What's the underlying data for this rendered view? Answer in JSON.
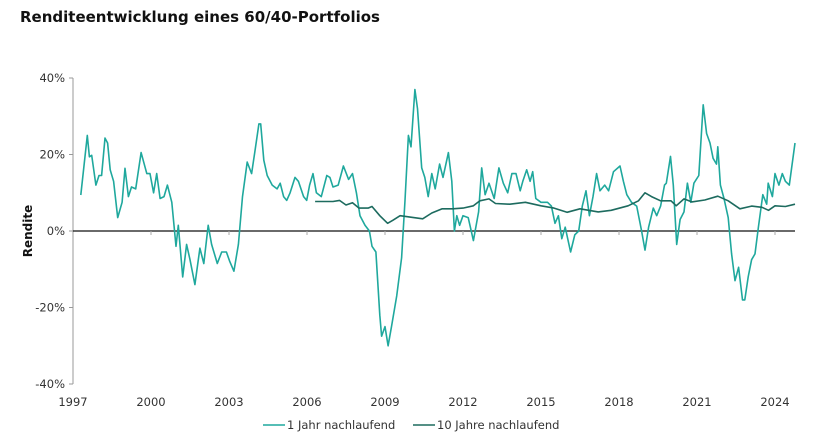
{
  "chart_data": {
    "type": "line",
    "title": "Renditeentwicklung eines 60/40-Portfolios",
    "xlabel": "",
    "ylabel": "Rendite",
    "xlim": [
      1997,
      2024.8
    ],
    "ylim": [
      -40,
      40
    ],
    "x_ticks": [
      "1997",
      "2000",
      "2003",
      "2006",
      "2009",
      "2012",
      "2015",
      "2018",
      "2021",
      "2024"
    ],
    "x_tick_values": [
      1997,
      2000,
      2003,
      2006,
      2009,
      2012,
      2015,
      2018,
      2021,
      2024
    ],
    "y_ticks": [
      "40%",
      "20%",
      "0%",
      "-20%",
      "-40%"
    ],
    "y_tick_values": [
      40,
      20,
      0,
      -20,
      -40
    ],
    "grid": false,
    "legend_position": "bottom",
    "series": [
      {
        "name": "1 Jahr nachlaufend",
        "color": "#1fa89d",
        "points": [
          [
            1997.3,
            9.4
          ],
          [
            1997.55,
            25
          ],
          [
            1997.63,
            19.4
          ],
          [
            1997.72,
            19.8
          ],
          [
            1997.88,
            12
          ],
          [
            1998.0,
            14.5
          ],
          [
            1998.1,
            14.5
          ],
          [
            1998.23,
            24.3
          ],
          [
            1998.33,
            23
          ],
          [
            1998.43,
            16
          ],
          [
            1998.56,
            13
          ],
          [
            1998.72,
            3.5
          ],
          [
            1998.89,
            7.5
          ],
          [
            1999.0,
            16.4
          ],
          [
            1999.13,
            9
          ],
          [
            1999.25,
            11.5
          ],
          [
            1999.41,
            11
          ],
          [
            1999.62,
            20.5
          ],
          [
            1999.84,
            15
          ],
          [
            1999.96,
            15
          ],
          [
            2000.1,
            10
          ],
          [
            2000.22,
            15
          ],
          [
            2000.35,
            8.5
          ],
          [
            2000.5,
            9
          ],
          [
            2000.63,
            12
          ],
          [
            2000.8,
            7.5
          ],
          [
            2000.96,
            -4
          ],
          [
            2001.05,
            1.5
          ],
          [
            2001.22,
            -12
          ],
          [
            2001.37,
            -3.5
          ],
          [
            2001.5,
            -7.5
          ],
          [
            2001.69,
            -14
          ],
          [
            2001.88,
            -4.5
          ],
          [
            2002.03,
            -8.5
          ],
          [
            2002.2,
            1.5
          ],
          [
            2002.33,
            -3.5
          ],
          [
            2002.55,
            -8.5
          ],
          [
            2002.72,
            -5.5
          ],
          [
            2002.9,
            -5.5
          ],
          [
            2003.03,
            -8
          ],
          [
            2003.19,
            -10.5
          ],
          [
            2003.36,
            -3.5
          ],
          [
            2003.52,
            9
          ],
          [
            2003.7,
            18
          ],
          [
            2003.87,
            15
          ],
          [
            2004.0,
            21
          ],
          [
            2004.15,
            28
          ],
          [
            2004.22,
            28
          ],
          [
            2004.34,
            18.5
          ],
          [
            2004.47,
            14.5
          ],
          [
            2004.66,
            12
          ],
          [
            2004.85,
            11
          ],
          [
            2004.97,
            12.5
          ],
          [
            2005.1,
            9
          ],
          [
            2005.22,
            8
          ],
          [
            2005.35,
            10
          ],
          [
            2005.54,
            14
          ],
          [
            2005.67,
            13
          ],
          [
            2005.87,
            9
          ],
          [
            2005.99,
            8
          ],
          [
            2006.1,
            12
          ],
          [
            2006.23,
            15
          ],
          [
            2006.36,
            10
          ],
          [
            2006.55,
            9
          ],
          [
            2006.76,
            14.5
          ],
          [
            2006.88,
            14
          ],
          [
            2007.0,
            11.5
          ],
          [
            2007.2,
            12
          ],
          [
            2007.4,
            17
          ],
          [
            2007.6,
            13.5
          ],
          [
            2007.75,
            15
          ],
          [
            2007.9,
            10
          ],
          [
            2008.04,
            4
          ],
          [
            2008.23,
            1.5
          ],
          [
            2008.4,
            0
          ],
          [
            2008.5,
            -4
          ],
          [
            2008.65,
            -5.5
          ],
          [
            2008.8,
            -22
          ],
          [
            2008.87,
            -27.5
          ],
          [
            2009.0,
            -25
          ],
          [
            2009.12,
            -30
          ],
          [
            2009.25,
            -25
          ],
          [
            2009.45,
            -17
          ],
          [
            2009.64,
            -7
          ],
          [
            2009.77,
            8
          ],
          [
            2009.9,
            25
          ],
          [
            2010.0,
            22
          ],
          [
            2010.15,
            37
          ],
          [
            2010.25,
            32
          ],
          [
            2010.41,
            16.5
          ],
          [
            2010.53,
            14
          ],
          [
            2010.66,
            9
          ],
          [
            2010.8,
            15
          ],
          [
            2010.93,
            11
          ],
          [
            2011.1,
            17.5
          ],
          [
            2011.23,
            14
          ],
          [
            2011.44,
            20.5
          ],
          [
            2011.57,
            13
          ],
          [
            2011.67,
            0
          ],
          [
            2011.76,
            4
          ],
          [
            2011.87,
            1.5
          ],
          [
            2012.0,
            4
          ],
          [
            2012.2,
            3.5
          ],
          [
            2012.4,
            -2.5
          ],
          [
            2012.6,
            5
          ],
          [
            2012.72,
            16.5
          ],
          [
            2012.85,
            9.5
          ],
          [
            2013.0,
            12.5
          ],
          [
            2013.2,
            8.5
          ],
          [
            2013.38,
            16.5
          ],
          [
            2013.55,
            12.5
          ],
          [
            2013.72,
            10
          ],
          [
            2013.88,
            15
          ],
          [
            2014.04,
            15
          ],
          [
            2014.2,
            10.5
          ],
          [
            2014.3,
            13
          ],
          [
            2014.45,
            16
          ],
          [
            2014.58,
            13
          ],
          [
            2014.68,
            15.5
          ],
          [
            2014.8,
            8.5
          ],
          [
            2015.0,
            7.5
          ],
          [
            2015.25,
            7.5
          ],
          [
            2015.4,
            6.5
          ],
          [
            2015.54,
            2
          ],
          [
            2015.67,
            4
          ],
          [
            2015.8,
            -2
          ],
          [
            2015.93,
            1
          ],
          [
            2016.14,
            -5.5
          ],
          [
            2016.3,
            -1
          ],
          [
            2016.45,
            0
          ],
          [
            2016.59,
            6.5
          ],
          [
            2016.73,
            10.5
          ],
          [
            2016.86,
            4
          ],
          [
            2017.0,
            9
          ],
          [
            2017.14,
            15
          ],
          [
            2017.27,
            10.5
          ],
          [
            2017.45,
            12
          ],
          [
            2017.6,
            10.5
          ],
          [
            2017.79,
            15.5
          ],
          [
            2018.04,
            17
          ],
          [
            2018.17,
            13
          ],
          [
            2018.3,
            9.5
          ],
          [
            2018.48,
            7.5
          ],
          [
            2018.68,
            6.5
          ],
          [
            2018.87,
            0
          ],
          [
            2019.0,
            -5
          ],
          [
            2019.14,
            1
          ],
          [
            2019.32,
            6
          ],
          [
            2019.45,
            4
          ],
          [
            2019.6,
            6.5
          ],
          [
            2019.75,
            12
          ],
          [
            2019.82,
            12.5
          ],
          [
            2019.98,
            19.5
          ],
          [
            2020.09,
            12
          ],
          [
            2020.22,
            -3.5
          ],
          [
            2020.35,
            3
          ],
          [
            2020.5,
            5
          ],
          [
            2020.63,
            12.5
          ],
          [
            2020.76,
            7.5
          ],
          [
            2020.88,
            12.5
          ],
          [
            2021.07,
            14.5
          ],
          [
            2021.24,
            33
          ],
          [
            2021.37,
            25.5
          ],
          [
            2021.5,
            23
          ],
          [
            2021.62,
            19
          ],
          [
            2021.75,
            17.5
          ],
          [
            2021.8,
            22
          ],
          [
            2021.9,
            12
          ],
          [
            2022.04,
            8.5
          ],
          [
            2022.2,
            3.5
          ],
          [
            2022.33,
            -6
          ],
          [
            2022.46,
            -13
          ],
          [
            2022.6,
            -9.5
          ],
          [
            2022.75,
            -18
          ],
          [
            2022.84,
            -18
          ],
          [
            2022.97,
            -12
          ],
          [
            2023.1,
            -7.5
          ],
          [
            2023.23,
            -6
          ],
          [
            2023.36,
            1
          ],
          [
            2023.53,
            9.5
          ],
          [
            2023.68,
            7
          ],
          [
            2023.74,
            12.5
          ],
          [
            2023.9,
            9
          ],
          [
            2024.0,
            15
          ],
          [
            2024.15,
            12
          ],
          [
            2024.28,
            15
          ],
          [
            2024.4,
            13
          ],
          [
            2024.55,
            12
          ],
          [
            2024.77,
            23
          ]
        ]
      },
      {
        "name": "10 Jahre nachlaufend",
        "color": "#1d6b5f",
        "points": [
          [
            2006.31,
            7.7
          ],
          [
            2007.0,
            7.7
          ],
          [
            2007.25,
            8
          ],
          [
            2007.5,
            6.8
          ],
          [
            2007.75,
            7.4
          ],
          [
            2008.0,
            6
          ],
          [
            2008.35,
            6
          ],
          [
            2008.5,
            6.4
          ],
          [
            2008.8,
            4
          ],
          [
            2009.1,
            2
          ],
          [
            2009.3,
            2.8
          ],
          [
            2009.58,
            4
          ],
          [
            2010.1,
            3.5
          ],
          [
            2010.45,
            3.2
          ],
          [
            2010.8,
            4.7
          ],
          [
            2011.2,
            5.8
          ],
          [
            2011.6,
            5.8
          ],
          [
            2012.0,
            6
          ],
          [
            2012.4,
            6.6
          ],
          [
            2012.65,
            7.9
          ],
          [
            2013.0,
            8.4
          ],
          [
            2013.25,
            7.2
          ],
          [
            2013.8,
            7
          ],
          [
            2014.4,
            7.5
          ],
          [
            2015.0,
            6.6
          ],
          [
            2015.5,
            6
          ],
          [
            2016.0,
            4.9
          ],
          [
            2016.5,
            5.8
          ],
          [
            2017.2,
            5
          ],
          [
            2017.7,
            5.4
          ],
          [
            2018.35,
            6.6
          ],
          [
            2018.75,
            7.9
          ],
          [
            2019.0,
            10
          ],
          [
            2019.25,
            9
          ],
          [
            2019.6,
            7.9
          ],
          [
            2020.0,
            7.9
          ],
          [
            2020.2,
            6.6
          ],
          [
            2020.5,
            8.4
          ],
          [
            2020.8,
            7.6
          ],
          [
            2021.3,
            8.1
          ],
          [
            2021.8,
            9.1
          ],
          [
            2022.2,
            7.9
          ],
          [
            2022.65,
            5.8
          ],
          [
            2023.1,
            6.5
          ],
          [
            2023.5,
            6.2
          ],
          [
            2023.75,
            5.4
          ],
          [
            2024.0,
            6.6
          ],
          [
            2024.4,
            6.4
          ],
          [
            2024.77,
            7
          ]
        ]
      }
    ]
  }
}
